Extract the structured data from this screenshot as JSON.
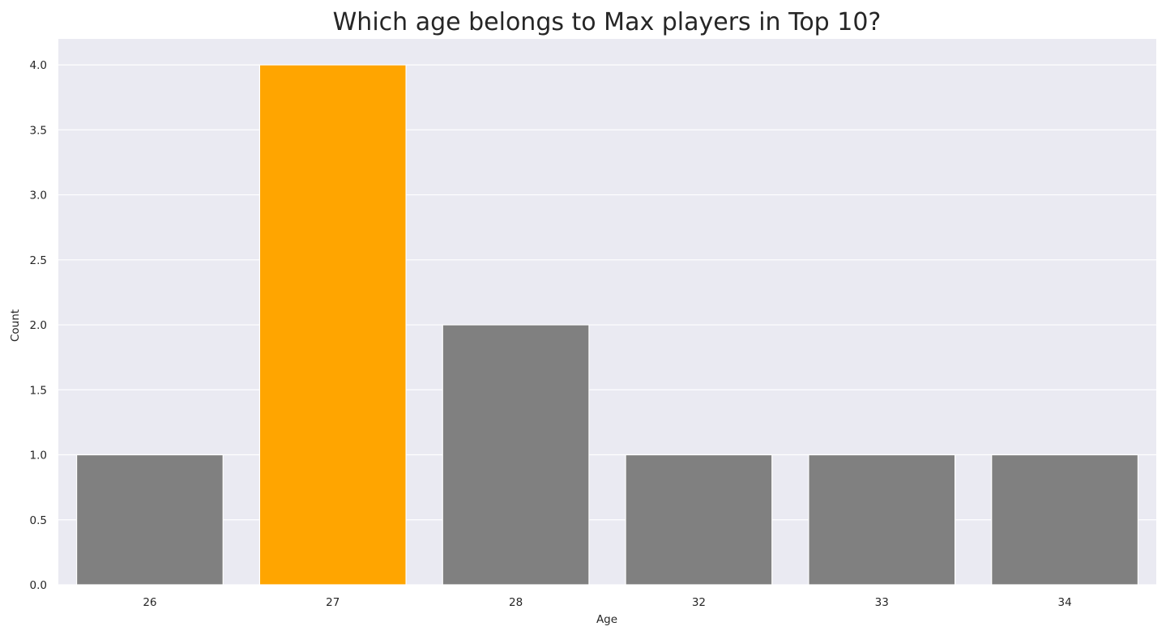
{
  "chart_data": {
    "type": "bar",
    "title": "Which age belongs to Max players in Top 10?",
    "xlabel": "Age",
    "ylabel": "Count",
    "categories": [
      "26",
      "27",
      "28",
      "32",
      "33",
      "34"
    ],
    "values": [
      1,
      4,
      2,
      1,
      1,
      1
    ],
    "ylim": [
      0,
      4.2
    ],
    "yticks": [
      "0.0",
      "0.5",
      "1.0",
      "1.5",
      "2.0",
      "2.5",
      "3.0",
      "3.5",
      "4.0"
    ],
    "grid": true,
    "background_color": "#EAEAF2",
    "bar_color": "#808080",
    "highlight_color": "#FFA500",
    "highlight_category": "27"
  }
}
